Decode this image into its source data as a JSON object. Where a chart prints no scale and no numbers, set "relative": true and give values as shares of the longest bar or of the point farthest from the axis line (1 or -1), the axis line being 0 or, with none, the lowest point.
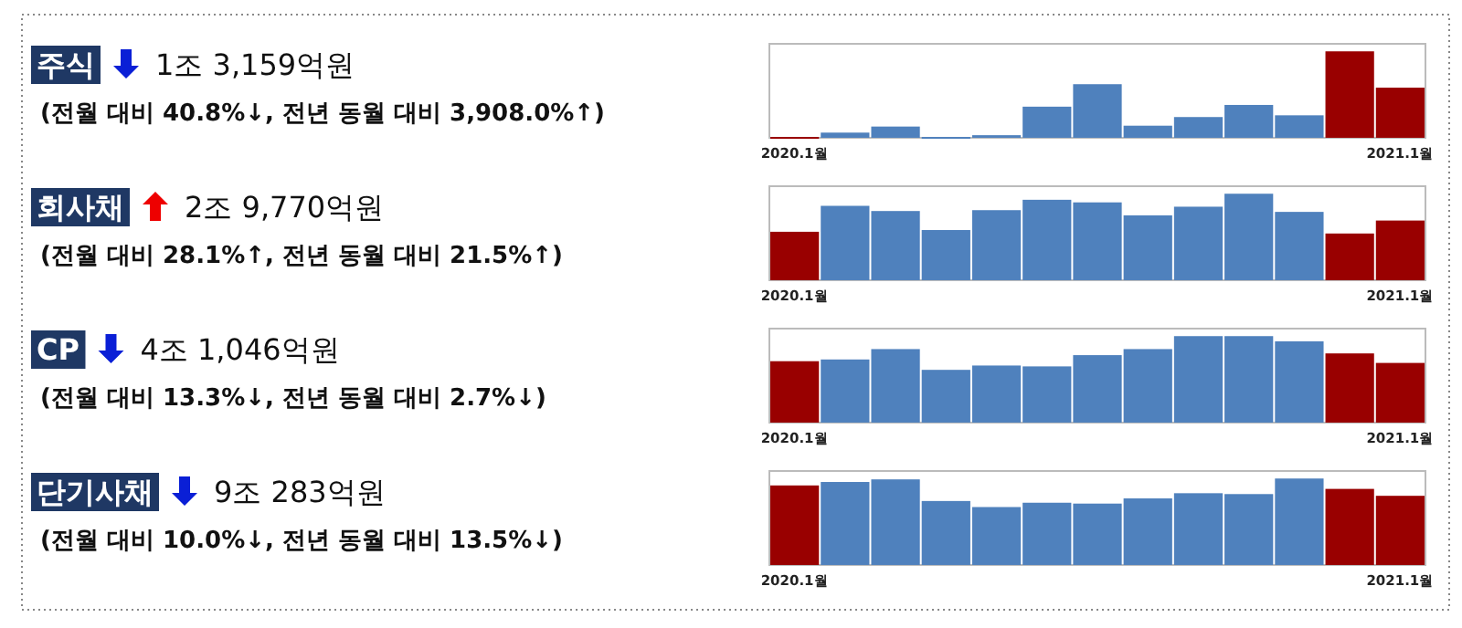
{
  "chart_data": [
    {
      "type": "other",
      "title": "주식",
      "subtitle": "1조 3,159억원",
      "annotations": [
        "(전월 대비 40.8%↓, 전년 동월 대비 3,908.0%↑)"
      ]
    },
    {
      "type": "bar",
      "categories": [
        "2020.1월",
        null,
        null,
        null,
        null,
        null,
        null,
        null,
        null,
        null,
        null,
        null,
        "2021.1월"
      ],
      "relative": true,
      "values": [
        0.01,
        0.06,
        0.13,
        0.01,
        0.03,
        0.36,
        0.62,
        0.14,
        0.24,
        0.38,
        0.26,
        1,
        0.58
      ],
      "colors": [
        "#990000",
        "#4f81bd",
        "#4f81bd",
        "#4f81bd",
        "#4f81bd",
        "#4f81bd",
        "#4f81bd",
        "#4f81bd",
        "#4f81bd",
        "#4f81bd",
        "#4f81bd",
        "#990000",
        "#990000"
      ]
    },
    {
      "type": "other",
      "title": "회사채",
      "subtitle": "2조 9,770억원",
      "annotations": [
        "(전월 대비 28.1%↑, 전년 동월 대비 21.5%↑)"
      ]
    },
    {
      "type": "bar",
      "categories": [
        "2020.1월",
        null,
        null,
        null,
        null,
        null,
        null,
        null,
        null,
        null,
        null,
        null,
        "2021.1월"
      ],
      "relative": true,
      "values": [
        0.56,
        0.86,
        0.8,
        0.58,
        0.81,
        0.93,
        0.9,
        0.75,
        0.85,
        1,
        0.79,
        0.54,
        0.69
      ],
      "colors": [
        "#990000",
        "#4f81bd",
        "#4f81bd",
        "#4f81bd",
        "#4f81bd",
        "#4f81bd",
        "#4f81bd",
        "#4f81bd",
        "#4f81bd",
        "#4f81bd",
        "#4f81bd",
        "#990000",
        "#990000"
      ]
    },
    {
      "type": "other",
      "title": "CP",
      "subtitle": "4조 1,046억원",
      "annotations": [
        "(전월 대비 13.3%↓, 전년 동월 대비 2.7%↓)"
      ]
    },
    {
      "type": "bar",
      "categories": [
        "2020.1월",
        null,
        null,
        null,
        null,
        null,
        null,
        null,
        null,
        null,
        null,
        null,
        "2021.1월"
      ],
      "relative": true,
      "values": [
        0.71,
        0.73,
        0.85,
        0.61,
        0.66,
        0.65,
        0.78,
        0.85,
        1,
        1,
        0.94,
        0.8,
        0.69
      ],
      "colors": [
        "#990000",
        "#4f81bd",
        "#4f81bd",
        "#4f81bd",
        "#4f81bd",
        "#4f81bd",
        "#4f81bd",
        "#4f81bd",
        "#4f81bd",
        "#4f81bd",
        "#4f81bd",
        "#990000",
        "#990000"
      ]
    },
    {
      "type": "other",
      "title": "단기사채",
      "subtitle": "9조 283억원",
      "annotations": [
        "(전월 대비 10.0%↓, 전년 동월 대비 13.5%↓)"
      ]
    },
    {
      "type": "bar",
      "categories": [
        "2020.1월",
        null,
        null,
        null,
        null,
        null,
        null,
        null,
        null,
        null,
        null,
        null,
        "2021.1월"
      ],
      "relative": true,
      "values": [
        0.92,
        0.96,
        0.99,
        0.74,
        0.67,
        0.72,
        0.71,
        0.77,
        0.83,
        0.82,
        1,
        0.88,
        0.8
      ],
      "colors": [
        "#990000",
        "#4f81bd",
        "#4f81bd",
        "#4f81bd",
        "#4f81bd",
        "#4f81bd",
        "#4f81bd",
        "#4f81bd",
        "#4f81bd",
        "#4f81bd",
        "#4f81bd",
        "#990000",
        "#990000"
      ]
    }
  ]
}
